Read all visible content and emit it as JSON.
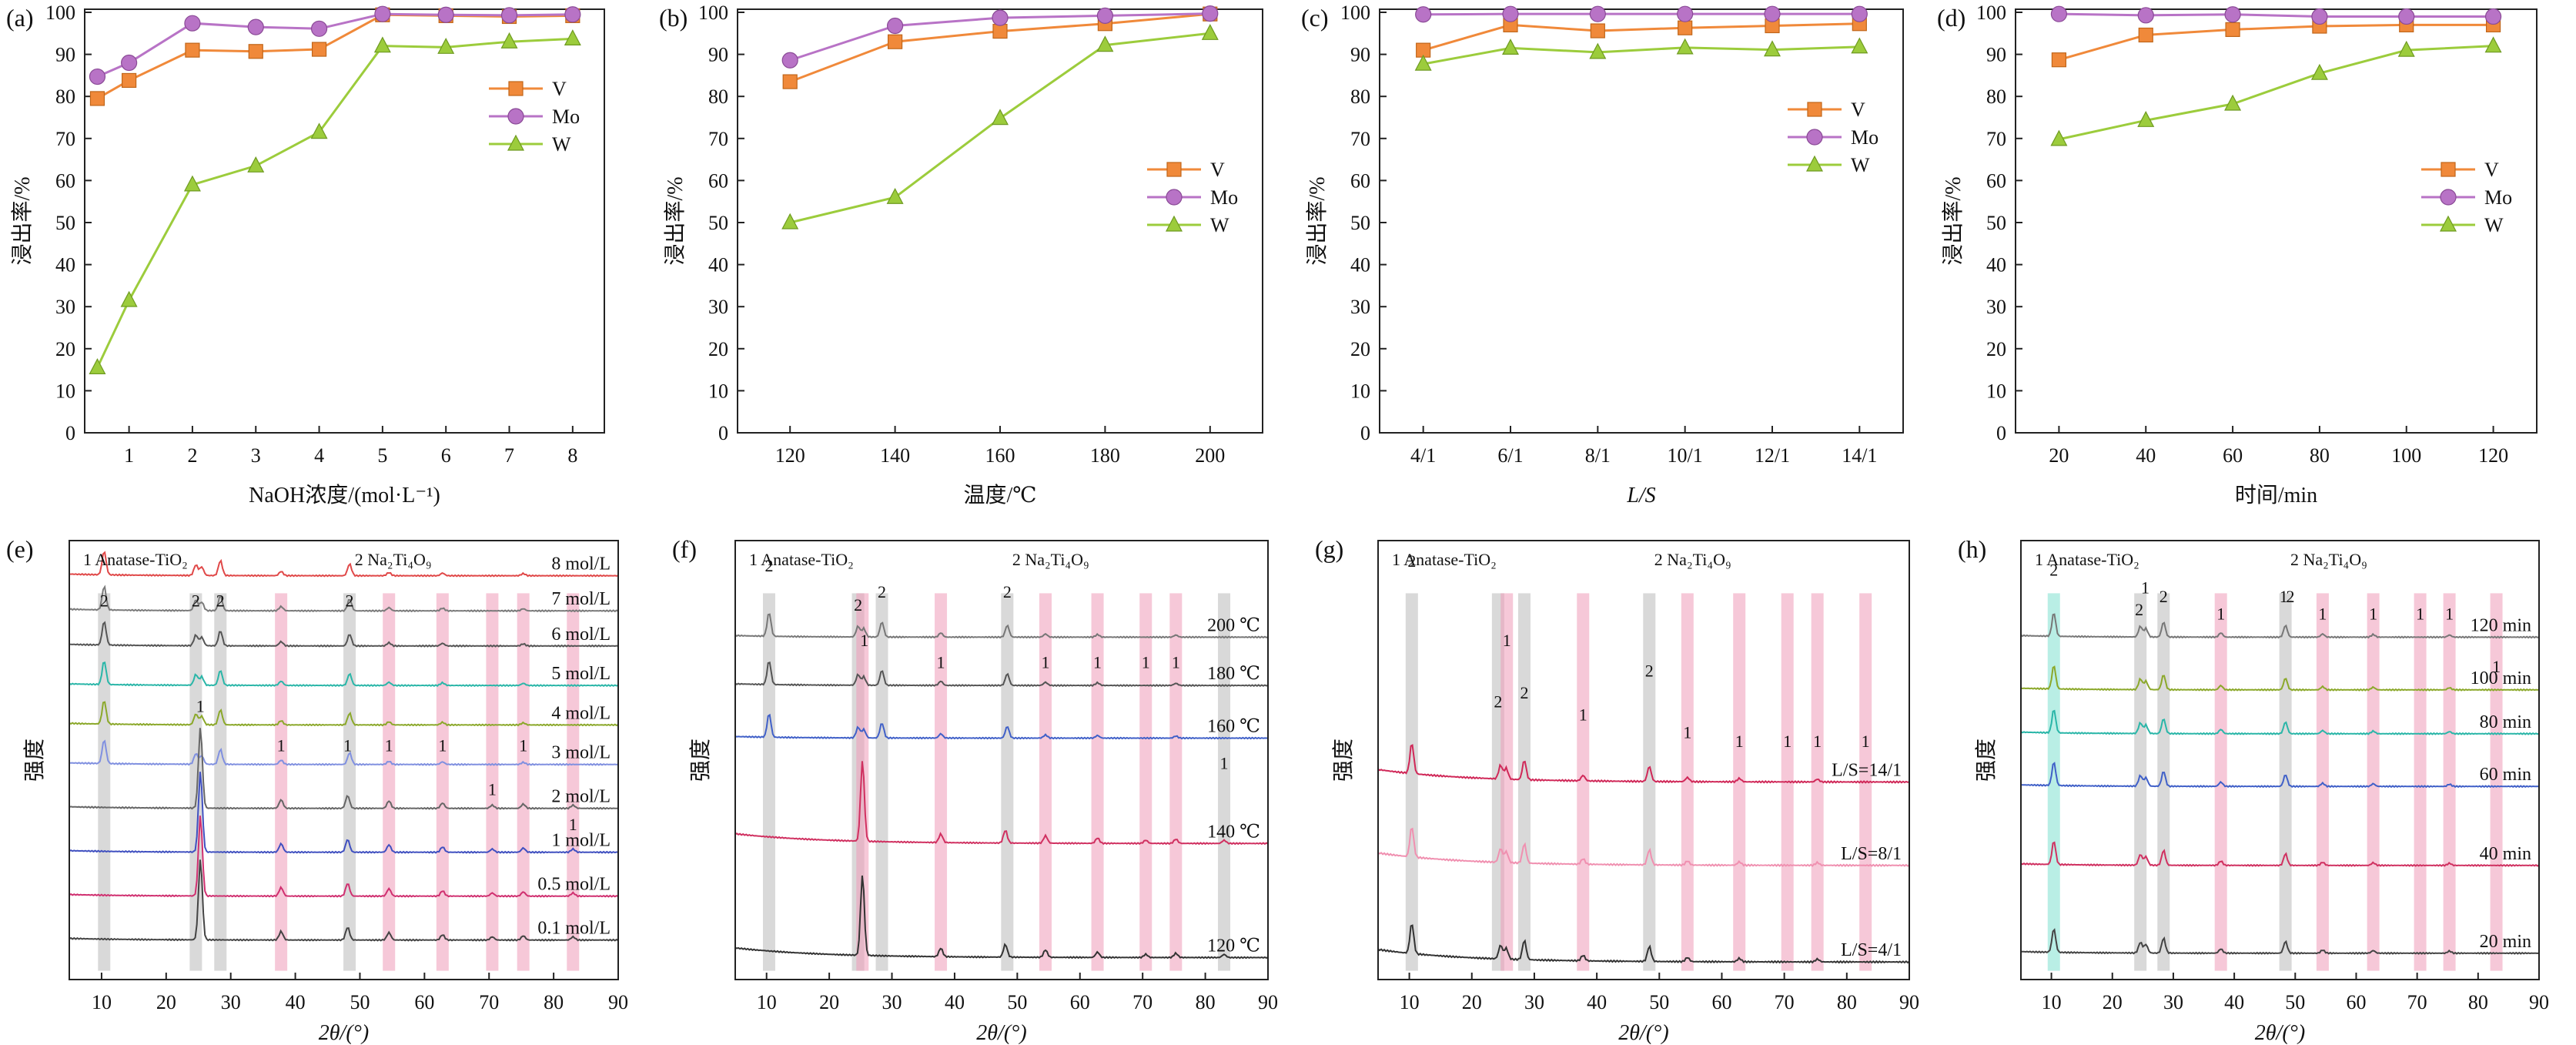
{
  "colors": {
    "V": "#f0893a",
    "Mo": "#b873c6",
    "W": "#9ccc3c",
    "axis": "#222222",
    "peak_gray": "#b9b9b9",
    "peak_pink": "#ef9ab8",
    "peak_cyan": "#7fe0d0"
  },
  "chart_data": [
    {
      "id": "a",
      "panel_label": "(a)",
      "type": "line",
      "xlabel": "NaOH浓度/(mol·L⁻¹)",
      "ylabel": "浸出率/%",
      "x_ticks": [
        "1",
        "2",
        "3",
        "4",
        "5",
        "6",
        "7",
        "8"
      ],
      "x_tick_values": [
        1,
        2,
        3,
        4,
        5,
        6,
        7,
        8
      ],
      "xlim": [
        0.3,
        8.5
      ],
      "ylim": [
        0,
        100
      ],
      "y_ticks": [
        "0",
        "10",
        "20",
        "30",
        "40",
        "50",
        "60",
        "70",
        "80",
        "90",
        "100"
      ],
      "legend": "middle-right",
      "series": [
        {
          "name": "V",
          "marker": "square",
          "x": [
            0.5,
            1,
            2,
            3,
            4,
            5,
            6,
            7,
            8
          ],
          "y": [
            79.5,
            83.8,
            91,
            90.7,
            91.2,
            99.4,
            99.2,
            99,
            99.2
          ]
        },
        {
          "name": "Mo",
          "marker": "circle",
          "x": [
            0.5,
            1,
            2,
            3,
            4,
            5,
            6,
            7,
            8
          ],
          "y": [
            84.7,
            88,
            97.4,
            96.5,
            96.1,
            99.6,
            99.4,
            99.3,
            99.5
          ]
        },
        {
          "name": "W",
          "marker": "triangle",
          "x": [
            0.5,
            1,
            2,
            3,
            4,
            5,
            6,
            7,
            8
          ],
          "y": [
            15.5,
            31.5,
            59,
            63.5,
            71.5,
            92,
            91.7,
            93,
            93.7
          ]
        }
      ]
    },
    {
      "id": "b",
      "panel_label": "(b)",
      "type": "line",
      "xlabel": "温度/℃",
      "ylabel": "浸出率/%",
      "x_ticks": [
        "120",
        "140",
        "160",
        "180",
        "200"
      ],
      "x_tick_values": [
        120,
        140,
        160,
        180,
        200
      ],
      "xlim": [
        110,
        210
      ],
      "ylim": [
        0,
        100
      ],
      "y_ticks": [
        "0",
        "10",
        "20",
        "30",
        "40",
        "50",
        "60",
        "70",
        "80",
        "90",
        "100"
      ],
      "legend": "middle-right",
      "series": [
        {
          "name": "V",
          "marker": "square",
          "x": [
            120,
            140,
            160,
            180,
            200
          ],
          "y": [
            83.5,
            93,
            95.5,
            97.3,
            99.6
          ]
        },
        {
          "name": "Mo",
          "marker": "circle",
          "x": [
            120,
            140,
            160,
            180,
            200
          ],
          "y": [
            88.6,
            96.8,
            98.7,
            99.2,
            99.7
          ]
        },
        {
          "name": "W",
          "marker": "triangle",
          "x": [
            120,
            140,
            160,
            180,
            200
          ],
          "y": [
            50,
            56,
            74.8,
            92.2,
            95
          ]
        }
      ]
    },
    {
      "id": "c",
      "panel_label": "(c)",
      "type": "line",
      "xlabel": "L/S",
      "ylabel": "浸出率/%",
      "x_ticks": [
        "4/1",
        "6/1",
        "8/1",
        "10/1",
        "12/1",
        "14/1"
      ],
      "x_tick_values": [
        4,
        6,
        8,
        10,
        12,
        14
      ],
      "xlim": [
        3,
        15
      ],
      "ylim": [
        0,
        100
      ],
      "y_ticks": [
        "0",
        "10",
        "20",
        "30",
        "40",
        "50",
        "60",
        "70",
        "80",
        "90",
        "100"
      ],
      "legend": "upper-right",
      "series": [
        {
          "name": "V",
          "marker": "square",
          "x": [
            4,
            6,
            8,
            10,
            12,
            14
          ],
          "y": [
            91,
            97,
            95.6,
            96.3,
            96.8,
            97.3
          ]
        },
        {
          "name": "Mo",
          "marker": "circle",
          "x": [
            4,
            6,
            8,
            10,
            12,
            14
          ],
          "y": [
            99.5,
            99.6,
            99.6,
            99.6,
            99.6,
            99.6
          ]
        },
        {
          "name": "W",
          "marker": "triangle",
          "x": [
            4,
            6,
            8,
            10,
            12,
            14
          ],
          "y": [
            87.7,
            91.5,
            90.5,
            91.6,
            91.1,
            91.8
          ]
        }
      ]
    },
    {
      "id": "d",
      "panel_label": "(d)",
      "type": "line",
      "xlabel": "时间/min",
      "ylabel": "浸出率/%",
      "x_ticks": [
        "20",
        "40",
        "60",
        "80",
        "100",
        "120"
      ],
      "x_tick_values": [
        20,
        40,
        60,
        80,
        100,
        120
      ],
      "xlim": [
        10,
        130
      ],
      "ylim": [
        0,
        100
      ],
      "y_ticks": [
        "0",
        "10",
        "20",
        "30",
        "40",
        "50",
        "60",
        "70",
        "80",
        "90",
        "100"
      ],
      "legend": "middle-right",
      "series": [
        {
          "name": "V",
          "marker": "square",
          "x": [
            20,
            40,
            60,
            80,
            100,
            120
          ],
          "y": [
            88.7,
            94.6,
            95.9,
            96.7,
            97,
            97
          ]
        },
        {
          "name": "Mo",
          "marker": "circle",
          "x": [
            20,
            40,
            60,
            80,
            100,
            120
          ],
          "y": [
            99.6,
            99.3,
            99.5,
            99,
            99,
            99
          ]
        },
        {
          "name": "W",
          "marker": "triangle",
          "x": [
            20,
            40,
            60,
            80,
            100,
            120
          ],
          "y": [
            69.8,
            74.3,
            78.2,
            85.5,
            91,
            92
          ]
        }
      ]
    },
    {
      "id": "e",
      "panel_label": "(e)",
      "type": "line",
      "kind": "xrd",
      "xlabel": "2θ/(°)",
      "ylabel": "强度",
      "x_ticks": [
        "10",
        "20",
        "30",
        "40",
        "50",
        "60",
        "70",
        "80",
        "90"
      ],
      "x_tick_values": [
        10,
        20,
        30,
        40,
        50,
        60,
        70,
        80,
        90
      ],
      "xlim": [
        5,
        90
      ],
      "phase_legend": [
        "1 Anatase-TiO₂",
        "2 Na₂Ti₄O₉"
      ],
      "bands": [
        {
          "c": 10.4,
          "color": "gray"
        },
        {
          "c": 24.6,
          "color": "gray"
        },
        {
          "c": 28.4,
          "color": "gray"
        },
        {
          "c": 37.8,
          "color": "pink"
        },
        {
          "c": 48.4,
          "color": "gray"
        },
        {
          "c": 54.5,
          "color": "pink"
        },
        {
          "c": 62.8,
          "color": "pink"
        },
        {
          "c": 70.5,
          "color": "pink"
        },
        {
          "c": 75.3,
          "color": "pink"
        },
        {
          "c": 83,
          "color": "pink"
        }
      ],
      "peak_marks": [
        {
          "x": 10.4,
          "label": "2",
          "level": 0.85
        },
        {
          "x": 24.6,
          "label": "2",
          "level": 0.85
        },
        {
          "x": 28.4,
          "label": "2",
          "level": 0.85
        },
        {
          "x": 48.4,
          "label": "2",
          "level": 0.85
        },
        {
          "x": 25.3,
          "label": "1",
          "level": 0.61
        },
        {
          "x": 37.8,
          "label": "1",
          "level": 0.52
        },
        {
          "x": 48.1,
          "label": "1",
          "level": 0.52
        },
        {
          "x": 54.5,
          "label": "1",
          "level": 0.52
        },
        {
          "x": 62.8,
          "label": "1",
          "level": 0.52
        },
        {
          "x": 75.3,
          "label": "1",
          "level": 0.52
        },
        {
          "x": 70.5,
          "label": "1",
          "level": 0.42
        },
        {
          "x": 83,
          "label": "1",
          "level": 0.34
        }
      ],
      "series": [
        {
          "name": "8 mol/L",
          "color": "#e04848",
          "level": 0.92,
          "peaks": "2"
        },
        {
          "name": "7 mol/L",
          "color": "#7a7a7a",
          "level": 0.84,
          "peaks": "2"
        },
        {
          "name": "6 mol/L",
          "color": "#555555",
          "level": 0.76,
          "peaks": "2"
        },
        {
          "name": "5 mol/L",
          "color": "#2ab6a8",
          "level": 0.67,
          "peaks": "2"
        },
        {
          "name": "4 mol/L",
          "color": "#8ba82a",
          "level": 0.58,
          "peaks": "2"
        },
        {
          "name": "3 mol/L",
          "color": "#8090e0",
          "level": 0.49,
          "peaks": "2"
        },
        {
          "name": "2 mol/L",
          "color": "#666666",
          "level": 0.39,
          "peaks": "1"
        },
        {
          "name": "1 mol/L",
          "color": "#4050c0",
          "level": 0.29,
          "peaks": "1"
        },
        {
          "name": "0.5 mol/L",
          "color": "#d03070",
          "level": 0.19,
          "peaks": "1"
        },
        {
          "name": "0.1 mol/L",
          "color": "#444444",
          "level": 0.09,
          "peaks": "1"
        }
      ]
    },
    {
      "id": "f",
      "panel_label": "(f)",
      "type": "line",
      "kind": "xrd",
      "xlabel": "2θ/(°)",
      "ylabel": "强度",
      "x_ticks": [
        "10",
        "20",
        "30",
        "40",
        "50",
        "60",
        "70",
        "80",
        "90"
      ],
      "x_tick_values": [
        10,
        20,
        30,
        40,
        50,
        60,
        70,
        80,
        90
      ],
      "xlim": [
        5,
        90
      ],
      "phase_legend": [
        "1 Anatase-TiO₂",
        "2 Na₂Ti₄O₉"
      ],
      "bands": [
        {
          "c": 10.4,
          "color": "gray"
        },
        {
          "c": 24.6,
          "color": "gray"
        },
        {
          "c": 28.4,
          "color": "gray"
        },
        {
          "c": 25.3,
          "color": "pink"
        },
        {
          "c": 37.8,
          "color": "pink"
        },
        {
          "c": 48.4,
          "color": "gray"
        },
        {
          "c": 54.5,
          "color": "pink"
        },
        {
          "c": 62.8,
          "color": "pink"
        },
        {
          "c": 70.5,
          "color": "pink"
        },
        {
          "c": 75.3,
          "color": "pink"
        },
        {
          "c": 83,
          "color": "gray"
        }
      ],
      "peak_marks": [
        {
          "x": 10.4,
          "label": "2",
          "level": 0.93
        },
        {
          "x": 24.6,
          "label": "2",
          "level": 0.84
        },
        {
          "x": 28.4,
          "label": "2",
          "level": 0.87
        },
        {
          "x": 48.4,
          "label": "2",
          "level": 0.87
        },
        {
          "x": 25.6,
          "label": "1",
          "level": 0.76
        },
        {
          "x": 37.8,
          "label": "1",
          "level": 0.71
        },
        {
          "x": 54.5,
          "label": "1",
          "level": 0.71
        },
        {
          "x": 62.8,
          "label": "1",
          "level": 0.71
        },
        {
          "x": 70.5,
          "label": "1",
          "level": 0.71
        },
        {
          "x": 75.3,
          "label": "1",
          "level": 0.71
        },
        {
          "x": 83,
          "label": "1",
          "level": 0.48
        }
      ],
      "series": [
        {
          "name": "200 ℃",
          "color": "#777777",
          "level": 0.78,
          "peaks": "2"
        },
        {
          "name": "180 ℃",
          "color": "#555555",
          "level": 0.67,
          "peaks": "2"
        },
        {
          "name": "160 ℃",
          "color": "#4060c8",
          "level": 0.55,
          "peaks": "2"
        },
        {
          "name": "140 ℃",
          "color": "#d03060",
          "level": 0.31,
          "peaks": "1"
        },
        {
          "name": "120 ℃",
          "color": "#333333",
          "level": 0.05,
          "peaks": "1"
        }
      ]
    },
    {
      "id": "g",
      "panel_label": "(g)",
      "type": "line",
      "kind": "xrd",
      "xlabel": "2θ/(°)",
      "ylabel": "强度",
      "x_ticks": [
        "10",
        "20",
        "30",
        "40",
        "50",
        "60",
        "70",
        "80",
        "90"
      ],
      "x_tick_values": [
        10,
        20,
        30,
        40,
        50,
        60,
        70,
        80,
        90
      ],
      "xlim": [
        5,
        90
      ],
      "phase_legend": [
        "1 Anatase-TiO₂",
        "2 Na₂Ti₄O₉"
      ],
      "bands": [
        {
          "c": 10.4,
          "color": "gray"
        },
        {
          "c": 24.2,
          "color": "gray"
        },
        {
          "c": 25.6,
          "color": "pink"
        },
        {
          "c": 28.4,
          "color": "gray"
        },
        {
          "c": 37.8,
          "color": "pink"
        },
        {
          "c": 48.4,
          "color": "gray"
        },
        {
          "c": 54.5,
          "color": "pink"
        },
        {
          "c": 62.8,
          "color": "pink"
        },
        {
          "c": 70.5,
          "color": "pink"
        },
        {
          "c": 75.3,
          "color": "pink"
        },
        {
          "c": 83,
          "color": "pink"
        }
      ],
      "peak_marks": [
        {
          "x": 10.4,
          "label": "2",
          "level": 0.94
        },
        {
          "x": 24.2,
          "label": "2",
          "level": 0.62
        },
        {
          "x": 25.6,
          "label": "1",
          "level": 0.76
        },
        {
          "x": 28.4,
          "label": "2",
          "level": 0.64
        },
        {
          "x": 37.8,
          "label": "1",
          "level": 0.59
        },
        {
          "x": 48.4,
          "label": "2",
          "level": 0.69
        },
        {
          "x": 54.5,
          "label": "1",
          "level": 0.55
        },
        {
          "x": 62.8,
          "label": "1",
          "level": 0.53
        },
        {
          "x": 70.5,
          "label": "1",
          "level": 0.53
        },
        {
          "x": 75.3,
          "label": "1",
          "level": 0.53
        },
        {
          "x": 83,
          "label": "1",
          "level": 0.53
        }
      ],
      "series": [
        {
          "name": "L/S=14/1",
          "color": "#d02858",
          "level": 0.45,
          "peaks": "2"
        },
        {
          "name": "L/S=8/1",
          "color": "#f090b0",
          "level": 0.26,
          "peaks": "2"
        },
        {
          "name": "L/S=4/1",
          "color": "#333333",
          "level": 0.04,
          "peaks": "2"
        }
      ]
    },
    {
      "id": "h",
      "panel_label": "(h)",
      "type": "line",
      "kind": "xrd",
      "xlabel": "2θ/(°)",
      "ylabel": "强度",
      "x_ticks": [
        "10",
        "20",
        "30",
        "40",
        "50",
        "60",
        "70",
        "80",
        "90"
      ],
      "x_tick_values": [
        10,
        20,
        30,
        40,
        50,
        60,
        70,
        80,
        90
      ],
      "xlim": [
        5,
        90
      ],
      "phase_legend": [
        "1 Anatase-TiO₂",
        "2 Na₂Ti₄O₉"
      ],
      "bands": [
        {
          "c": 10.4,
          "color": "cyan"
        },
        {
          "c": 24.6,
          "color": "gray"
        },
        {
          "c": 28.4,
          "color": "gray"
        },
        {
          "c": 37.8,
          "color": "pink"
        },
        {
          "c": 48.4,
          "color": "gray"
        },
        {
          "c": 54.5,
          "color": "pink"
        },
        {
          "c": 62.8,
          "color": "pink"
        },
        {
          "c": 70.5,
          "color": "pink"
        },
        {
          "c": 75.3,
          "color": "pink"
        },
        {
          "c": 83,
          "color": "pink"
        }
      ],
      "peak_marks": [
        {
          "x": 10.4,
          "label": "2",
          "level": 0.92
        },
        {
          "x": 24.4,
          "label": "2",
          "level": 0.83
        },
        {
          "x": 25.4,
          "label": "1",
          "level": 0.88
        },
        {
          "x": 28.4,
          "label": "2",
          "level": 0.86
        },
        {
          "x": 37.8,
          "label": "1",
          "level": 0.82
        },
        {
          "x": 48.1,
          "label": "1",
          "level": 0.86
        },
        {
          "x": 49.2,
          "label": "2",
          "level": 0.86
        },
        {
          "x": 54.5,
          "label": "1",
          "level": 0.82
        },
        {
          "x": 62.8,
          "label": "1",
          "level": 0.82
        },
        {
          "x": 70.5,
          "label": "1",
          "level": 0.82
        },
        {
          "x": 75.3,
          "label": "1",
          "level": 0.82
        },
        {
          "x": 83,
          "label": "1",
          "level": 0.7
        }
      ],
      "series": [
        {
          "name": "120 min",
          "color": "#777777",
          "level": 0.78,
          "peaks": "2"
        },
        {
          "name": "100 min",
          "color": "#8ba82a",
          "level": 0.66,
          "peaks": "2"
        },
        {
          "name": "80 min",
          "color": "#2ab6a8",
          "level": 0.56,
          "peaks": "2"
        },
        {
          "name": "60 min",
          "color": "#4060c8",
          "level": 0.44,
          "peaks": "2"
        },
        {
          "name": "40 min",
          "color": "#d03060",
          "level": 0.26,
          "peaks": "2"
        },
        {
          "name": "20 min",
          "color": "#444444",
          "level": 0.06,
          "peaks": "2"
        }
      ]
    }
  ]
}
